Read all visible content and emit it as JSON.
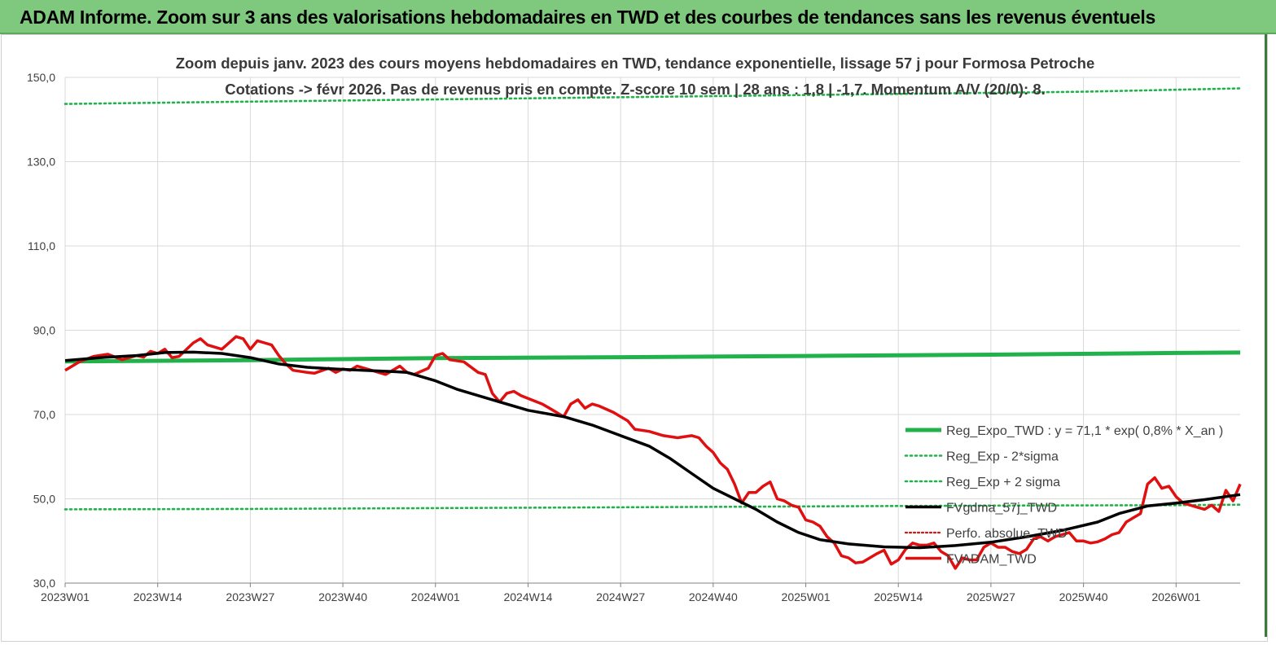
{
  "banner_title": "ADAM Informe. Zoom sur 3 ans des valorisations hebdomadaires en TWD et des courbes de tendances sans les revenus éventuels",
  "colors": {
    "banner_bg": "#7fc97f",
    "regression": "#22b24c",
    "sigma": "#22b24c",
    "smoothed": "#000000",
    "price": "#e01010",
    "perf_abs": "#e01010",
    "grid": "#d9d9d9",
    "subtitle": "#3a3a3a"
  },
  "chart_data": {
    "type": "line",
    "title": "Zoom depuis janv. 2023 des cours moyens hebdomadaires en TWD, tendance exponentielle, lissage 57 j pour Formosa Petroche",
    "subtitle": "Cotations -> févr 2026.  Pas de revenus pris en compte. Z-score 10 sem  | 28 ans : 1,8 | -1,7. Momentum A/V (20/0): 8.",
    "xlabel": "",
    "ylabel": "",
    "ylim": [
      30,
      150
    ],
    "yticks": [
      "30,0",
      "50,0",
      "70,0",
      "90,0",
      "110,0",
      "130,0",
      "150,0"
    ],
    "ytick_values": [
      30,
      50,
      70,
      90,
      110,
      130,
      150
    ],
    "xticks": [
      "2023W01",
      "2023W14",
      "2023W27",
      "2023W40",
      "2024W01",
      "2024W14",
      "2024W27",
      "2024W40",
      "2025W01",
      "2025W14",
      "2025W27",
      "2025W40",
      "2026W01"
    ],
    "xtick_weeks": [
      0,
      13,
      26,
      39,
      52,
      65,
      78,
      91,
      104,
      117,
      130,
      143,
      156
    ],
    "xrange_weeks": [
      0,
      165
    ],
    "grid": "vertical and horizontal",
    "legend_position": "right-lower, overlapping plot",
    "series": [
      {
        "name": "Reg_Expo_TWD : y = 71,1 * exp( 0,8% *  X_an )",
        "style": "solid-thick",
        "points": [
          [
            0,
            82.6
          ],
          [
            26,
            82.9
          ],
          [
            52,
            83.4
          ],
          [
            78,
            83.6
          ],
          [
            104,
            83.9
          ],
          [
            130,
            84.2
          ],
          [
            156,
            84.6
          ],
          [
            165,
            84.7
          ]
        ]
      },
      {
        "name": "Reg_Exp - 2*sigma",
        "style": "dotted",
        "points": [
          [
            0,
            47.5
          ],
          [
            26,
            47.6
          ],
          [
            52,
            47.8
          ],
          [
            78,
            48.0
          ],
          [
            104,
            48.2
          ],
          [
            130,
            48.4
          ],
          [
            156,
            48.5
          ],
          [
            165,
            48.6
          ]
        ]
      },
      {
        "name": "Reg_Exp + 2 sigma",
        "style": "dotted",
        "points": [
          [
            0,
            143.7
          ],
          [
            19,
            144.1
          ],
          [
            143,
            146.6
          ],
          [
            165,
            147.4
          ]
        ]
      },
      {
        "name": "FVgdma_57j_TWD",
        "style": "solid-medium",
        "points": [
          [
            0,
            82.8
          ],
          [
            5,
            83.5
          ],
          [
            10,
            84.0
          ],
          [
            14,
            84.7
          ],
          [
            18,
            84.8
          ],
          [
            22,
            84.5
          ],
          [
            26,
            83.5
          ],
          [
            30,
            82.0
          ],
          [
            34,
            81.2
          ],
          [
            38,
            80.8
          ],
          [
            42,
            80.5
          ],
          [
            46,
            80.2
          ],
          [
            48,
            80.0
          ],
          [
            50,
            79.0
          ],
          [
            52,
            78.0
          ],
          [
            55,
            76.0
          ],
          [
            60,
            73.5
          ],
          [
            65,
            71.0
          ],
          [
            70,
            69.5
          ],
          [
            74,
            67.5
          ],
          [
            78,
            65.0
          ],
          [
            82,
            62.5
          ],
          [
            85,
            59.5
          ],
          [
            88,
            56.0
          ],
          [
            91,
            52.5
          ],
          [
            94,
            50.0
          ],
          [
            97,
            47.5
          ],
          [
            100,
            44.5
          ],
          [
            103,
            42.0
          ],
          [
            106,
            40.3
          ],
          [
            110,
            39.3
          ],
          [
            115,
            38.6
          ],
          [
            120,
            38.4
          ],
          [
            125,
            38.9
          ],
          [
            130,
            39.7
          ],
          [
            135,
            41.0
          ],
          [
            140,
            42.5
          ],
          [
            145,
            44.5
          ],
          [
            148,
            46.5
          ],
          [
            152,
            48.3
          ],
          [
            156,
            49.0
          ],
          [
            160,
            49.8
          ],
          [
            165,
            51.0
          ]
        ]
      },
      {
        "name": "Perfo. absolue_TWD",
        "style": "dotted",
        "points": []
      },
      {
        "name": "FVADAM_TWD",
        "style": "solid-thick",
        "points": [
          [
            0,
            80.5
          ],
          [
            2,
            82.5
          ],
          [
            4,
            83.8
          ],
          [
            6,
            84.3
          ],
          [
            8,
            83.0
          ],
          [
            10,
            84.0
          ],
          [
            11,
            83.6
          ],
          [
            12,
            85.0
          ],
          [
            13,
            84.5
          ],
          [
            14,
            85.5
          ],
          [
            15,
            83.5
          ],
          [
            16,
            83.8
          ],
          [
            18,
            87.0
          ],
          [
            19,
            88.0
          ],
          [
            20,
            86.5
          ],
          [
            21,
            86.0
          ],
          [
            22,
            85.5
          ],
          [
            24,
            88.5
          ],
          [
            25,
            88.0
          ],
          [
            26,
            85.5
          ],
          [
            27,
            87.5
          ],
          [
            28,
            87.0
          ],
          [
            29,
            86.5
          ],
          [
            30,
            84.0
          ],
          [
            31,
            82.0
          ],
          [
            32,
            80.5
          ],
          [
            34,
            80.0
          ],
          [
            35,
            79.8
          ],
          [
            37,
            81.0
          ],
          [
            38,
            80.0
          ],
          [
            39,
            80.8
          ],
          [
            40,
            80.5
          ],
          [
            41,
            81.5
          ],
          [
            43,
            80.5
          ],
          [
            45,
            79.5
          ],
          [
            46,
            80.5
          ],
          [
            47,
            81.5
          ],
          [
            48,
            80.0
          ],
          [
            49,
            79.5
          ],
          [
            51,
            81.0
          ],
          [
            52,
            84.0
          ],
          [
            53,
            84.5
          ],
          [
            54,
            83.0
          ],
          [
            56,
            82.5
          ],
          [
            58,
            80.0
          ],
          [
            59,
            79.5
          ],
          [
            60,
            75.0
          ],
          [
            61,
            73.0
          ],
          [
            62,
            75.0
          ],
          [
            63,
            75.5
          ],
          [
            64,
            74.5
          ],
          [
            65,
            73.8
          ],
          [
            67,
            72.5
          ],
          [
            68,
            71.5
          ],
          [
            70,
            69.5
          ],
          [
            71,
            72.5
          ],
          [
            72,
            73.5
          ],
          [
            73,
            71.5
          ],
          [
            74,
            72.5
          ],
          [
            75,
            72.0
          ],
          [
            77,
            70.5
          ],
          [
            79,
            68.5
          ],
          [
            80,
            66.5
          ],
          [
            82,
            66.0
          ],
          [
            84,
            65.0
          ],
          [
            86,
            64.5
          ],
          [
            88,
            65.0
          ],
          [
            89,
            64.5
          ],
          [
            90,
            62.5
          ],
          [
            91,
            61.0
          ],
          [
            92,
            58.5
          ],
          [
            93,
            57.0
          ],
          [
            94,
            53.5
          ],
          [
            95,
            49.0
          ],
          [
            96,
            51.5
          ],
          [
            97,
            51.5
          ],
          [
            98,
            53.0
          ],
          [
            99,
            54.0
          ],
          [
            100,
            50.0
          ],
          [
            101,
            49.5
          ],
          [
            102,
            48.5
          ],
          [
            103,
            48.0
          ],
          [
            104,
            45.0
          ],
          [
            105,
            44.5
          ],
          [
            106,
            43.5
          ],
          [
            107,
            41.0
          ],
          [
            108,
            39.5
          ],
          [
            109,
            36.5
          ],
          [
            110,
            36.0
          ],
          [
            111,
            34.8
          ],
          [
            112,
            35.0
          ],
          [
            113,
            36.0
          ],
          [
            114,
            37.0
          ],
          [
            115,
            37.8
          ],
          [
            116,
            34.5
          ],
          [
            117,
            35.5
          ],
          [
            118,
            38.0
          ],
          [
            119,
            39.5
          ],
          [
            120,
            39.0
          ],
          [
            121,
            39.0
          ],
          [
            122,
            39.5
          ],
          [
            123,
            37.5
          ],
          [
            124,
            36.5
          ],
          [
            125,
            33.5
          ],
          [
            126,
            36.0
          ],
          [
            127,
            35.5
          ],
          [
            128,
            35.5
          ],
          [
            129,
            38.5
          ],
          [
            130,
            39.5
          ],
          [
            131,
            38.5
          ],
          [
            132,
            38.5
          ],
          [
            133,
            37.5
          ],
          [
            134,
            37.0
          ],
          [
            135,
            38.0
          ],
          [
            136,
            40.5
          ],
          [
            137,
            41.0
          ],
          [
            138,
            40.0
          ],
          [
            139,
            41.0
          ],
          [
            140,
            41.5
          ],
          [
            141,
            42.0
          ],
          [
            142,
            40.0
          ],
          [
            143,
            40.0
          ],
          [
            144,
            39.5
          ],
          [
            145,
            39.8
          ],
          [
            146,
            40.5
          ],
          [
            147,
            41.5
          ],
          [
            148,
            42.0
          ],
          [
            149,
            44.5
          ],
          [
            150,
            45.5
          ],
          [
            151,
            46.5
          ],
          [
            152,
            53.5
          ],
          [
            153,
            55.0
          ],
          [
            154,
            52.5
          ],
          [
            155,
            53.0
          ],
          [
            156,
            50.5
          ],
          [
            157,
            49.0
          ],
          [
            158,
            48.5
          ],
          [
            159,
            48.0
          ],
          [
            160,
            47.5
          ],
          [
            161,
            48.5
          ],
          [
            162,
            47.0
          ],
          [
            163,
            52.0
          ],
          [
            164,
            49.5
          ],
          [
            165,
            53.5
          ]
        ]
      }
    ]
  }
}
